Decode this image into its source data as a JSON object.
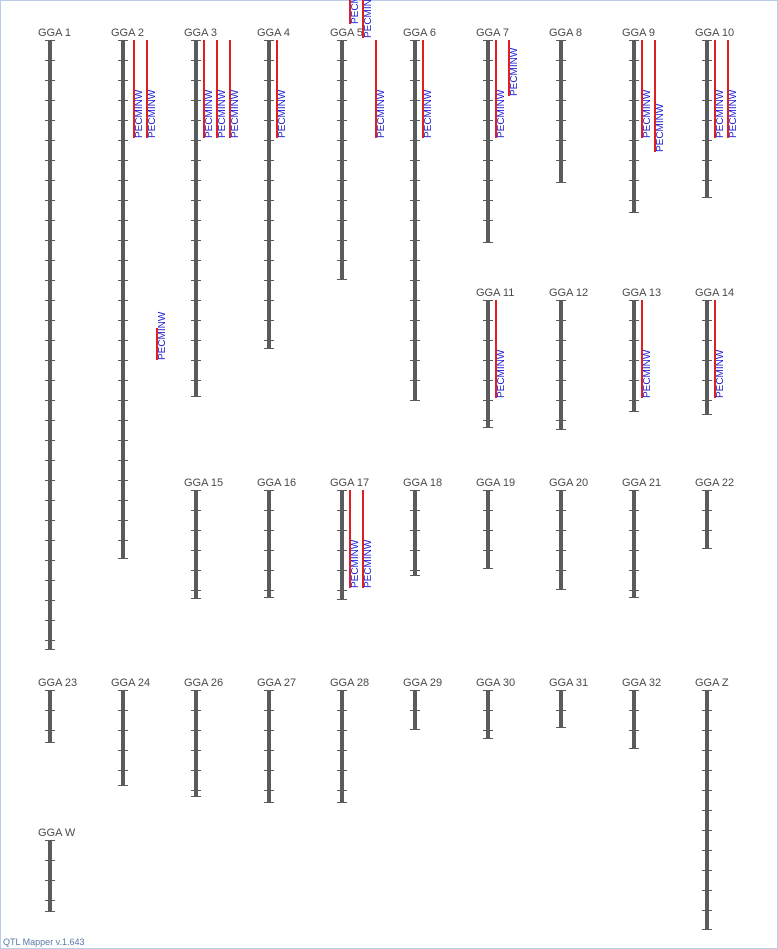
{
  "footer": "QTL Mapper v.1.643",
  "colors": {
    "chromosome": "#5b5b5b",
    "tick": "#5b5b5b",
    "qtl_bar": "#e02020",
    "qtl_text": "#1a1ad6",
    "label": "#4a4a4a",
    "frame": "#b9cde8"
  },
  "chart_data": {
    "type": "qtl-map",
    "trait_label": "PECMINW",
    "chromosomes": [
      {
        "name": "GGA 1",
        "qtls": []
      },
      {
        "name": "GGA 2",
        "qtls": [
          "PECMINW",
          "PECMINW",
          "PECMINW"
        ]
      },
      {
        "name": "GGA 3",
        "qtls": [
          "PECMINW",
          "PECMINW",
          "PECMINW"
        ]
      },
      {
        "name": "GGA 4",
        "qtls": [
          "PECMINW"
        ]
      },
      {
        "name": "GGA 5",
        "qtls": [
          "PECMINW",
          "PECMINW",
          "PECMINW"
        ]
      },
      {
        "name": "GGA 6",
        "qtls": [
          "PECMINW"
        ]
      },
      {
        "name": "GGA 7",
        "qtls": [
          "PECMINW",
          "PECMINW"
        ]
      },
      {
        "name": "GGA 8",
        "qtls": []
      },
      {
        "name": "GGA 9",
        "qtls": [
          "PECMINW",
          "PECMINW"
        ]
      },
      {
        "name": "GGA 10",
        "qtls": [
          "PECMINW",
          "PECMINW"
        ]
      },
      {
        "name": "GGA 11",
        "qtls": [
          "PECMINW"
        ]
      },
      {
        "name": "GGA 12",
        "qtls": []
      },
      {
        "name": "GGA 13",
        "qtls": [
          "PECMINW"
        ]
      },
      {
        "name": "GGA 14",
        "qtls": [
          "PECMINW"
        ]
      },
      {
        "name": "GGA 15",
        "qtls": []
      },
      {
        "name": "GGA 16",
        "qtls": []
      },
      {
        "name": "GGA 17",
        "qtls": [
          "PECMINW",
          "PECMINW"
        ]
      },
      {
        "name": "GGA 18",
        "qtls": []
      },
      {
        "name": "GGA 19",
        "qtls": []
      },
      {
        "name": "GGA 20",
        "qtls": []
      },
      {
        "name": "GGA 21",
        "qtls": []
      },
      {
        "name": "GGA 22",
        "qtls": []
      },
      {
        "name": "GGA 23",
        "qtls": []
      },
      {
        "name": "GGA 24",
        "qtls": []
      },
      {
        "name": "GGA 26",
        "qtls": []
      },
      {
        "name": "GGA 27",
        "qtls": []
      },
      {
        "name": "GGA 28",
        "qtls": []
      },
      {
        "name": "GGA 29",
        "qtls": []
      },
      {
        "name": "GGA 30",
        "qtls": []
      },
      {
        "name": "GGA 31",
        "qtls": []
      },
      {
        "name": "GGA 32",
        "qtls": []
      },
      {
        "name": "GGA Z",
        "qtls": []
      },
      {
        "name": "GGA W",
        "qtls": []
      }
    ]
  }
}
